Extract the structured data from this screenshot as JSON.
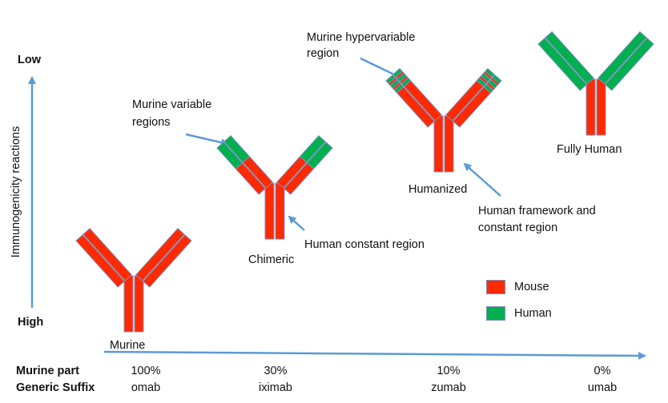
{
  "axis": {
    "y_label": "Immunogenicity reactions",
    "y_top": "Low",
    "y_bottom": "High"
  },
  "antibodies": [
    {
      "label": "Murine",
      "type": "murine"
    },
    {
      "label": "Chimeric",
      "type": "chimeric"
    },
    {
      "label": "Humanized",
      "type": "humanized"
    },
    {
      "label": "Fully Human",
      "type": "human"
    }
  ],
  "callouts": {
    "murine_variable": [
      "Murine variable",
      "regions"
    ],
    "murine_hypervariable": [
      "Murine hypervariable",
      "region"
    ],
    "human_constant": "Human constant region",
    "human_framework": [
      "Human framework and",
      "constant region"
    ]
  },
  "legend": [
    {
      "label": "Mouse",
      "color": "#ff2a00"
    },
    {
      "label": "Human",
      "color": "#00b050"
    }
  ],
  "table": {
    "row_labels": [
      "Murine part",
      "Generic Suffix"
    ],
    "columns": [
      {
        "murine_part": "100%",
        "suffix": "omab"
      },
      {
        "murine_part": "30%",
        "suffix": "iximab"
      },
      {
        "murine_part": "10%",
        "suffix": "zumab"
      },
      {
        "murine_part": "0%",
        "suffix": "umab"
      }
    ]
  },
  "colors": {
    "mouse": "#ff2a00",
    "human": "#00b050",
    "arrow": "#5b9bd5",
    "outline": "#7f8fbf"
  }
}
